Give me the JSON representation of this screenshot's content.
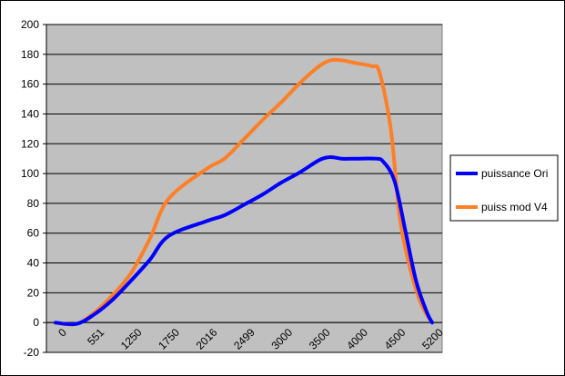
{
  "chart_data": {
    "type": "line",
    "title": "",
    "xlabel": "",
    "ylabel": "",
    "x_tick_labels": [
      "0",
      "551",
      "1250",
      "1750",
      "2016",
      "2499",
      "3000",
      "3500",
      "4000",
      "4500",
      "5200"
    ],
    "ylim": [
      -20,
      200
    ],
    "y_ticks": [
      -20,
      0,
      20,
      40,
      60,
      80,
      100,
      120,
      140,
      160,
      180,
      200
    ],
    "grid": "horizontal",
    "plot_background": "#c0c0c0",
    "legend_position": "right",
    "series": [
      {
        "name": "puissance Ori",
        "color": "#0000ff",
        "x": [
          0,
          300,
          551,
          900,
          1250,
          1500,
          1750,
          2016,
          2250,
          2499,
          2750,
          3000,
          3250,
          3500,
          3650,
          3800,
          4000,
          4250,
          4350,
          4500,
          4700,
          4900,
          5100,
          5200
        ],
        "y": [
          0,
          -1,
          5,
          15,
          28,
          42,
          58,
          68,
          72,
          79,
          86,
          94,
          101,
          109,
          111,
          110,
          110,
          110,
          108,
          95,
          62,
          28,
          7,
          0
        ]
      },
      {
        "name": "puiss mod V4",
        "color": "#ff7f27",
        "x": [
          0,
          300,
          551,
          900,
          1250,
          1500,
          1750,
          2016,
          2250,
          2499,
          2750,
          3000,
          3250,
          3500,
          3650,
          3800,
          4000,
          4200,
          4300,
          4450,
          4600,
          4800,
          5000,
          5200
        ],
        "y": [
          0,
          -1,
          6,
          18,
          33,
          56,
          83,
          103,
          110,
          123,
          136,
          148,
          161,
          172,
          176,
          176,
          174,
          172,
          168,
          130,
          70,
          35,
          12,
          0
        ]
      }
    ]
  }
}
